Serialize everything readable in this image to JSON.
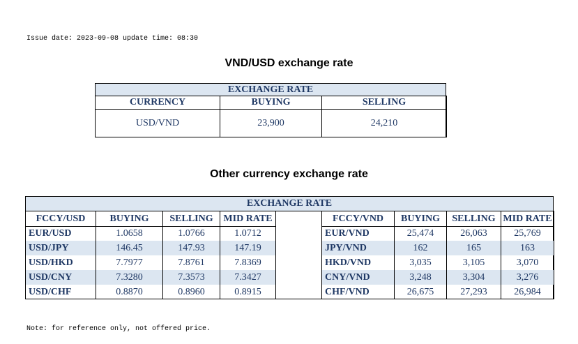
{
  "header": {
    "issue_date": "Issue date: 2023-09-08 update time: 08:30"
  },
  "section1": {
    "title": "VND/USD exchange rate",
    "table": {
      "caption": "EXCHANGE RATE",
      "columns": [
        "CURRENCY",
        "BUYING",
        "SELLING"
      ],
      "rows": [
        [
          "USD/VND",
          "23,900",
          "24,210"
        ]
      ]
    }
  },
  "section2": {
    "title": "Other currency exchange rate",
    "table": {
      "caption": "EXCHANGE  RATE",
      "columns": [
        "FCCY/USD",
        "BUYING",
        "SELLING",
        "MID RATE",
        "FCCY/VND",
        "BUYING",
        "SELLING",
        "MID RATE"
      ],
      "rows": [
        [
          "EUR/USD",
          "1.0658",
          "1.0766",
          "1.0712",
          "EUR/VND",
          "25,474",
          "26,063",
          "25,769"
        ],
        [
          "USD/JPY",
          "146.45",
          "147.93",
          "147.19",
          "JPY/VND",
          "162",
          "165",
          "163"
        ],
        [
          "USD/HKD",
          "7.7977",
          "7.8761",
          "7.8369",
          "HKD/VND",
          "3,035",
          "3,105",
          "3,070"
        ],
        [
          "USD/CNY",
          "7.3280",
          "7.3573",
          "7.3427",
          "CNY/VND",
          "3,248",
          "3,304",
          "3,276"
        ],
        [
          "USD/CHF",
          "0.8870",
          "0.8960",
          "0.8915",
          "CHF/VND",
          "26,675",
          "27,293",
          "26,984"
        ]
      ]
    }
  },
  "footer": {
    "note": "Note: for reference only, not offered price."
  }
}
